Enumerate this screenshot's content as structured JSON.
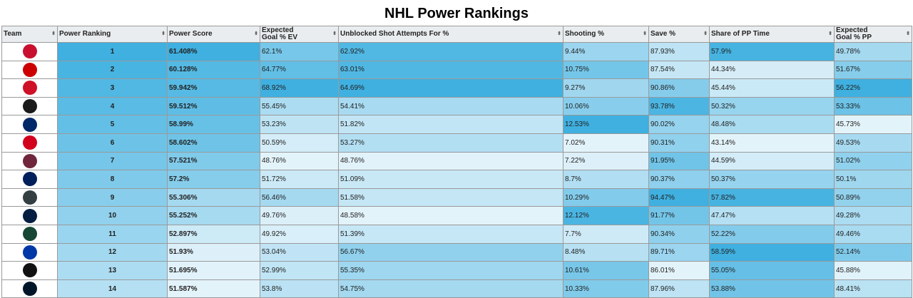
{
  "title": "NHL Power Rankings",
  "columns": [
    {
      "key": "team",
      "label1": "Team",
      "label2": ""
    },
    {
      "key": "rank",
      "label1": "Power Ranking",
      "label2": ""
    },
    {
      "key": "score",
      "label1": "Power Score",
      "label2": ""
    },
    {
      "key": "xg_ev",
      "label1": "Expected",
      "label2": "Goal % EV"
    },
    {
      "key": "usat",
      "label1": "Unblocked Shot Attempts For %",
      "label2": ""
    },
    {
      "key": "shoot",
      "label1": "Shooting %",
      "label2": ""
    },
    {
      "key": "save",
      "label1": "Save %",
      "label2": ""
    },
    {
      "key": "pp_time",
      "label1": "Share of PP Time",
      "label2": ""
    },
    {
      "key": "xg_pp",
      "label1": "Expected",
      "label2": "Goal % PP"
    }
  ],
  "rows": [
    {
      "logo_icon": "florida-panthers-logo-icon",
      "logo_color": "#c8102e",
      "rank": "1",
      "score": "61.408%",
      "xg_ev": "62.1%",
      "usat": "62.92%",
      "shoot": "9.44%",
      "save": "87.93%",
      "pp_time": "57.9%",
      "xg_pp": "49.78%"
    },
    {
      "logo_icon": "carolina-hurricanes-logo-icon",
      "logo_color": "#cc0000",
      "rank": "2",
      "score": "60.128%",
      "xg_ev": "64.77%",
      "usat": "63.01%",
      "shoot": "10.75%",
      "save": "87.54%",
      "pp_time": "44.34%",
      "xg_pp": "51.67%"
    },
    {
      "logo_icon": "new-jersey-devils-logo-icon",
      "logo_color": "#ce1126",
      "rank": "3",
      "score": "59.942%",
      "xg_ev": "68.92%",
      "usat": "64.69%",
      "shoot": "9.27%",
      "save": "90.86%",
      "pp_time": "45.44%",
      "xg_pp": "56.22%"
    },
    {
      "logo_icon": "boston-bruins-logo-icon",
      "logo_color": "#1a1a1a",
      "rank": "4",
      "score": "59.512%",
      "xg_ev": "55.45%",
      "usat": "54.41%",
      "shoot": "10.06%",
      "save": "93.78%",
      "pp_time": "50.32%",
      "xg_pp": "53.33%"
    },
    {
      "logo_icon": "tampa-bay-lightning-logo-icon",
      "logo_color": "#002868",
      "rank": "5",
      "score": "58.99%",
      "xg_ev": "53.23%",
      "usat": "51.82%",
      "shoot": "12.53%",
      "save": "90.02%",
      "pp_time": "48.48%",
      "xg_pp": "45.73%"
    },
    {
      "logo_icon": "calgary-flames-logo-icon",
      "logo_color": "#d2001c",
      "rank": "6",
      "score": "58.602%",
      "xg_ev": "50.59%",
      "usat": "53.27%",
      "shoot": "7.02%",
      "save": "90.31%",
      "pp_time": "43.14%",
      "xg_pp": "49.53%"
    },
    {
      "logo_icon": "colorado-avalanche-logo-icon",
      "logo_color": "#6f263d",
      "rank": "7",
      "score": "57.521%",
      "xg_ev": "48.76%",
      "usat": "48.76%",
      "shoot": "7.22%",
      "save": "91.95%",
      "pp_time": "44.59%",
      "xg_pp": "51.02%"
    },
    {
      "logo_icon": "toronto-maple-leafs-logo-icon",
      "logo_color": "#00205b",
      "rank": "8",
      "score": "57.2%",
      "xg_ev": "51.72%",
      "usat": "51.09%",
      "shoot": "8.7%",
      "save": "90.37%",
      "pp_time": "50.37%",
      "xg_pp": "50.1%"
    },
    {
      "logo_icon": "vegas-golden-knights-logo-icon",
      "logo_color": "#333f42",
      "rank": "9",
      "score": "55.306%",
      "xg_ev": "56.46%",
      "usat": "51.58%",
      "shoot": "10.29%",
      "save": "94.47%",
      "pp_time": "57.82%",
      "xg_pp": "50.89%"
    },
    {
      "logo_icon": "edmonton-oilers-logo-icon",
      "logo_color": "#041e42",
      "rank": "10",
      "score": "55.252%",
      "xg_ev": "49.76%",
      "usat": "48.58%",
      "shoot": "12.12%",
      "save": "91.77%",
      "pp_time": "47.47%",
      "xg_pp": "49.28%"
    },
    {
      "logo_icon": "minnesota-wild-logo-icon",
      "logo_color": "#154734",
      "rank": "11",
      "score": "52.897%",
      "xg_ev": "49.92%",
      "usat": "51.39%",
      "shoot": "7.7%",
      "save": "90.34%",
      "pp_time": "52.22%",
      "xg_pp": "49.46%"
    },
    {
      "logo_icon": "new-york-rangers-logo-icon",
      "logo_color": "#0038a8",
      "rank": "12",
      "score": "51.93%",
      "xg_ev": "53.04%",
      "usat": "56.67%",
      "shoot": "8.48%",
      "save": "89.71%",
      "pp_time": "58.59%",
      "xg_pp": "52.14%"
    },
    {
      "logo_icon": "los-angeles-kings-logo-icon",
      "logo_color": "#111111",
      "rank": "13",
      "score": "51.695%",
      "xg_ev": "52.99%",
      "usat": "55.35%",
      "shoot": "10.61%",
      "save": "86.01%",
      "pp_time": "55.05%",
      "xg_pp": "45.88%"
    },
    {
      "logo_icon": "seattle-kraken-logo-icon",
      "logo_color": "#001628",
      "rank": "14",
      "score": "51.587%",
      "xg_ev": "53.8%",
      "usat": "54.75%",
      "shoot": "10.33%",
      "save": "87.96%",
      "pp_time": "53.88%",
      "xg_pp": "48.41%"
    }
  ],
  "colors": {
    "header_bg": "#e9edef",
    "border": "#9a9a9a",
    "scale_low": "#f5fafd",
    "scale_high": "#3fb0e0"
  },
  "sort_icon": "sort-arrows-icon"
}
